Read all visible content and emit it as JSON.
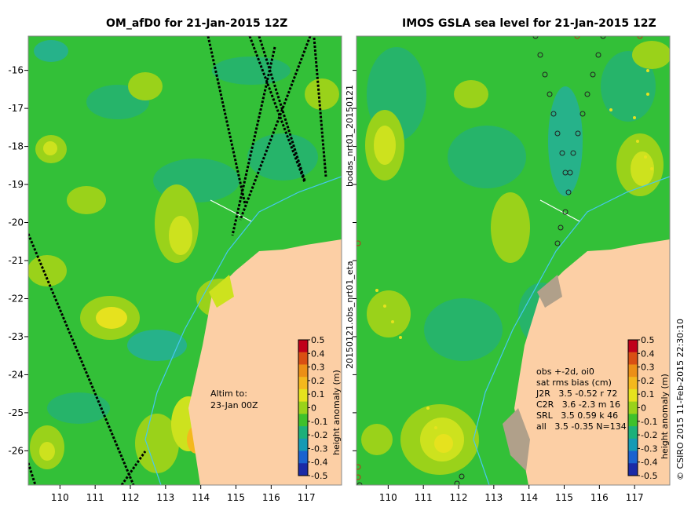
{
  "left_panel": {
    "title": "OM_afD0 for 21-Jan-2015 12Z",
    "note_line1": "Altim to:",
    "note_line2": "23-Jan 00Z",
    "colorbar_label": "height anomaly (m)"
  },
  "right_panel": {
    "title": "IMOS GSLA sea level  for 21-Jan-2015 12Z",
    "side_label_top": "bodas_nrt01_20150121",
    "side_label_bottom": "20150121.obs_nrt01_eta",
    "stats_header1": "obs +-2d, oi0",
    "stats_header2": "sat rms bias (cm)",
    "stats_rows": [
      "J2R   3.5 -0.52 r 72",
      "C2R   3.6 -2.3 m 16",
      "SRL   3.5 0.59 k 46",
      "all   3.5 -0.35 N=134"
    ],
    "colorbar_label": "height anomaly (m)",
    "copyright": "© CSIRO 2015  11-Feb-2015 22:30:10"
  },
  "axes": {
    "x_ticks": [
      110,
      111,
      112,
      113,
      114,
      115,
      116,
      117
    ],
    "y_ticks": [
      -16,
      -17,
      -18,
      -19,
      -20,
      -21,
      -22,
      -23,
      -24,
      -25,
      -26
    ],
    "lon_range": [
      109.1,
      118.0
    ],
    "lat_range": [
      -26.9,
      -15.1
    ]
  },
  "colorbar": {
    "ticks": [
      "0.5",
      "0.4",
      "0.3",
      "0.2",
      "0.1",
      "0",
      "-0.1",
      "-0.2",
      "-0.3",
      "-0.4",
      "-0.5"
    ],
    "colors": [
      "#c0001a",
      "#d94f13",
      "#ec8f16",
      "#f4b81d",
      "#e6e21e",
      "#9ad21a",
      "#3fc12c",
      "#1db07a",
      "#169ab4",
      "#1b62cf",
      "#1b2aa6"
    ]
  },
  "colors": {
    "background": "#33c038",
    "land": "#fccfa5",
    "river": "#46c8f0",
    "track_outline": "#000000"
  }
}
